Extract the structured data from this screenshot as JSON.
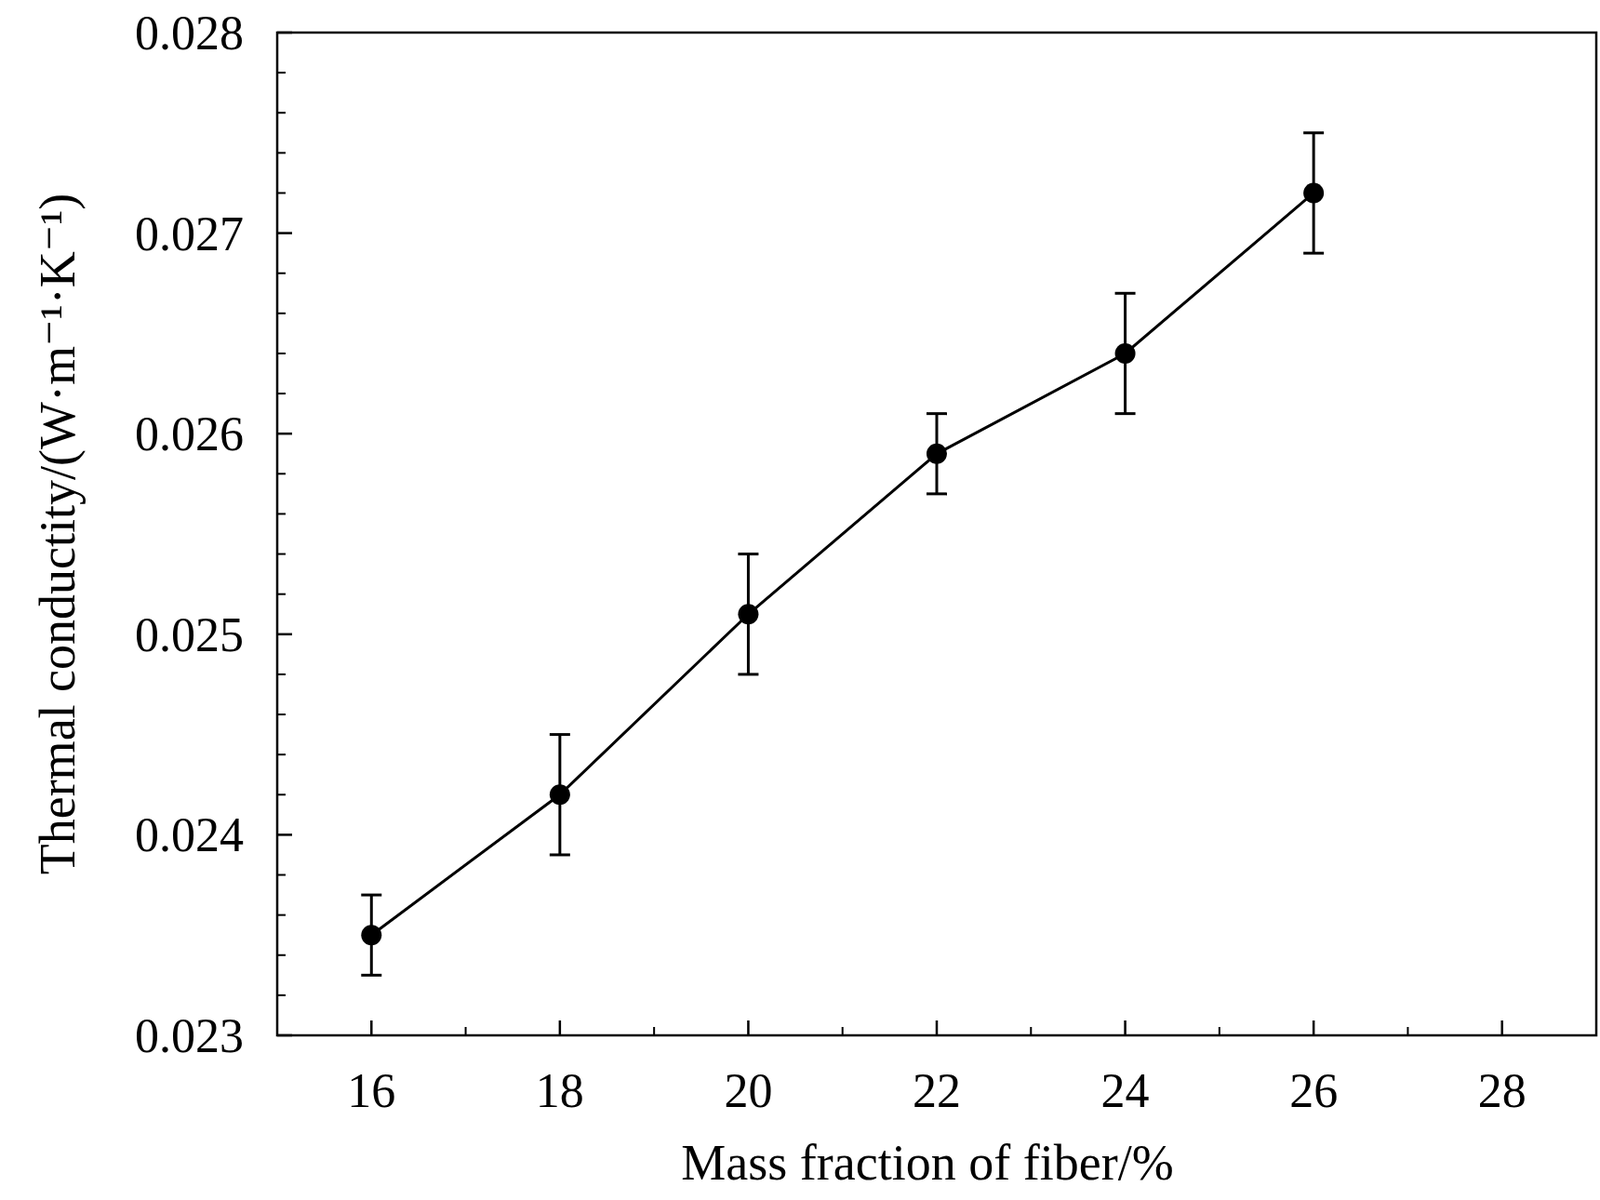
{
  "chart_data": {
    "type": "line",
    "x_label": "Mass fraction of fiber/%",
    "y_label": "Thermal conductity/(W·m⁻¹·K⁻¹)",
    "x": [
      16,
      18,
      20,
      22,
      24,
      26
    ],
    "series": [
      {
        "color": "#000000",
        "marker": "circle",
        "line_style": "solid",
        "values": [
          0.0235,
          0.0242,
          0.0251,
          0.0259,
          0.0264,
          0.0272
        ],
        "errors": [
          0.0002,
          0.0003,
          0.0003,
          0.0002,
          0.0003,
          0.0003
        ]
      }
    ],
    "xlim": [
      15,
      29
    ],
    "xticks": [
      16,
      18,
      20,
      22,
      24,
      26,
      28
    ],
    "ylim": [
      0.023,
      0.028
    ],
    "yticks": [
      0.023,
      0.024,
      0.025,
      0.026,
      0.027,
      0.028
    ],
    "grid": false
  }
}
